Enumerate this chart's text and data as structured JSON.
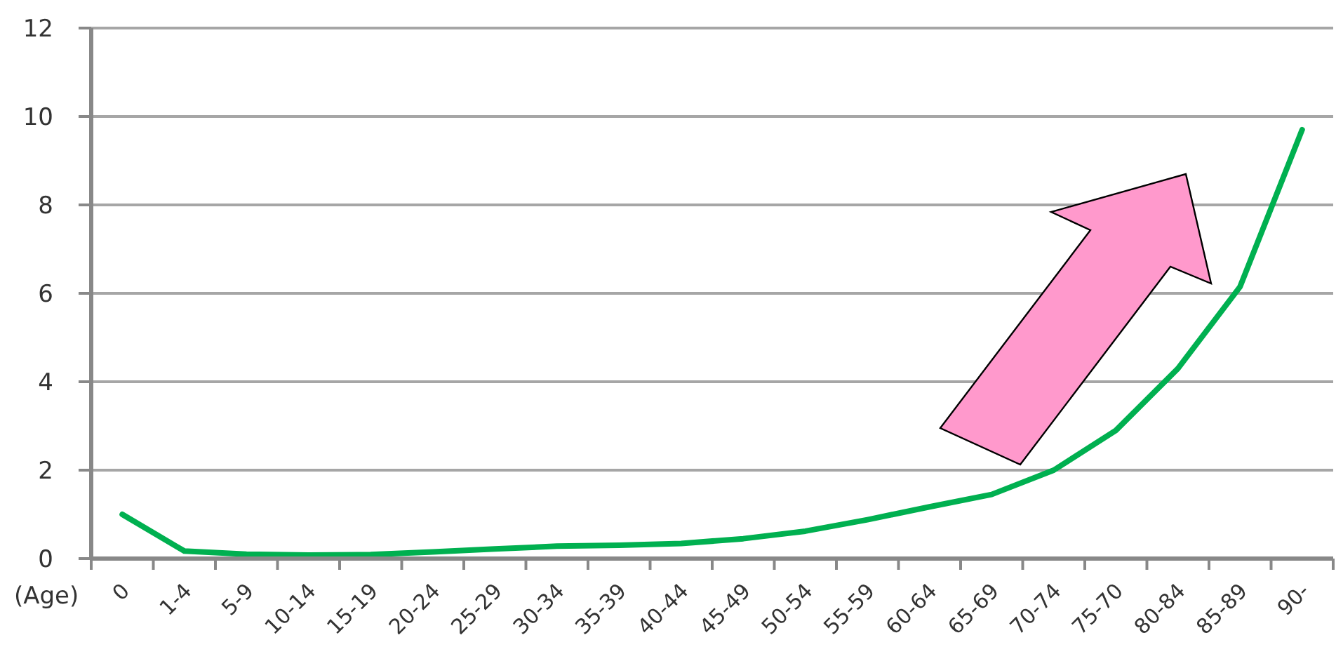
{
  "chart_data": {
    "type": "line",
    "xlabel": "(Age)",
    "categories": [
      "0",
      "1-4",
      "5-9",
      "10-14",
      "15-19",
      "20-24",
      "25-29",
      "30-34",
      "35-39",
      "40-44",
      "45-49",
      "50-54",
      "55-59",
      "60-64",
      "65-69",
      "70-74",
      "75-70",
      "80-84",
      "85-89",
      "90-"
    ],
    "series": [
      {
        "color": "#00b050",
        "values": [
          1.0,
          0.17,
          0.1,
          0.08,
          0.09,
          0.15,
          0.22,
          0.28,
          0.3,
          0.34,
          0.45,
          0.62,
          0.88,
          1.17,
          1.45,
          2.0,
          2.9,
          4.3,
          6.15,
          9.7
        ]
      }
    ],
    "ylim": [
      0,
      12
    ],
    "yticks": [
      0,
      2,
      4,
      6,
      8,
      10,
      12
    ],
    "grid": "y",
    "marker": "none"
  }
}
